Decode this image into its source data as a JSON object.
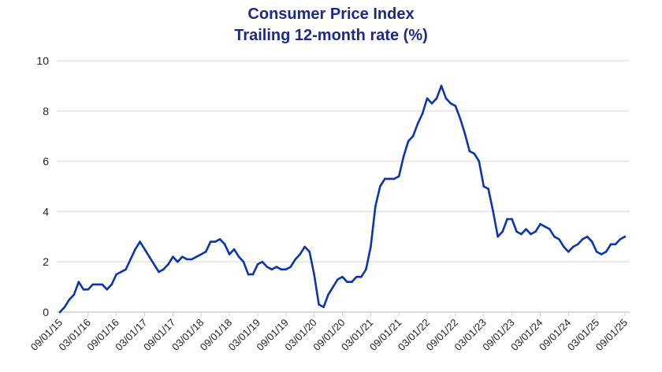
{
  "chart_data": {
    "type": "line",
    "title": "Consumer Price Index",
    "subtitle": "Trailing 12-month rate (%)",
    "xlabel": "",
    "ylabel": "",
    "ylim": [
      0,
      10
    ],
    "yticks": [
      0,
      2,
      4,
      6,
      8,
      10
    ],
    "grid": "horizontal",
    "legend": "none",
    "line_color": "#0a35b0",
    "xticks": [
      "09/01/15",
      "03/01/16",
      "09/01/16",
      "03/01/17",
      "09/01/17",
      "03/01/18",
      "09/01/18",
      "03/01/19",
      "09/01/19",
      "03/01/20",
      "09/01/20",
      "03/01/21",
      "09/01/21",
      "03/01/22",
      "09/01/22",
      "03/01/23",
      "09/01/23",
      "03/01/24",
      "09/01/24",
      "03/01/25",
      "09/01/25"
    ],
    "x_start": "2015-09",
    "x_frequency": "monthly",
    "series": [
      {
        "values": [
          0.0,
          0.2,
          0.5,
          0.7,
          1.2,
          0.9,
          0.9,
          1.1,
          1.1,
          1.1,
          0.9,
          1.1,
          1.5,
          1.6,
          1.7,
          2.1,
          2.5,
          2.8,
          2.5,
          2.2,
          1.9,
          1.6,
          1.7,
          1.9,
          2.2,
          2.0,
          2.2,
          2.1,
          2.1,
          2.2,
          2.3,
          2.4,
          2.8,
          2.8,
          2.9,
          2.7,
          2.3,
          2.5,
          2.2,
          2.0,
          1.5,
          1.5,
          1.9,
          2.0,
          1.8,
          1.7,
          1.8,
          1.7,
          1.7,
          1.8,
          2.1,
          2.3,
          2.6,
          2.4,
          1.5,
          0.3,
          0.2,
          0.7,
          1.0,
          1.3,
          1.4,
          1.2,
          1.2,
          1.4,
          1.4,
          1.7,
          2.6,
          4.2,
          5.0,
          5.3,
          5.3,
          5.3,
          5.4,
          6.2,
          6.8,
          7.0,
          7.5,
          7.9,
          8.5,
          8.3,
          8.5,
          9.0,
          8.5,
          8.3,
          8.2,
          7.7,
          7.1,
          6.4,
          6.3,
          6.0,
          5.0,
          4.9,
          4.0,
          3.0,
          3.2,
          3.7,
          3.7,
          3.2,
          3.1,
          3.3,
          3.1,
          3.2,
          3.5,
          3.4,
          3.3,
          3.0,
          2.9,
          2.6,
          2.4,
          2.6,
          2.7,
          2.9,
          3.0,
          2.8,
          2.4,
          2.3,
          2.4,
          2.7,
          2.7,
          2.9,
          3.0
        ]
      }
    ]
  }
}
